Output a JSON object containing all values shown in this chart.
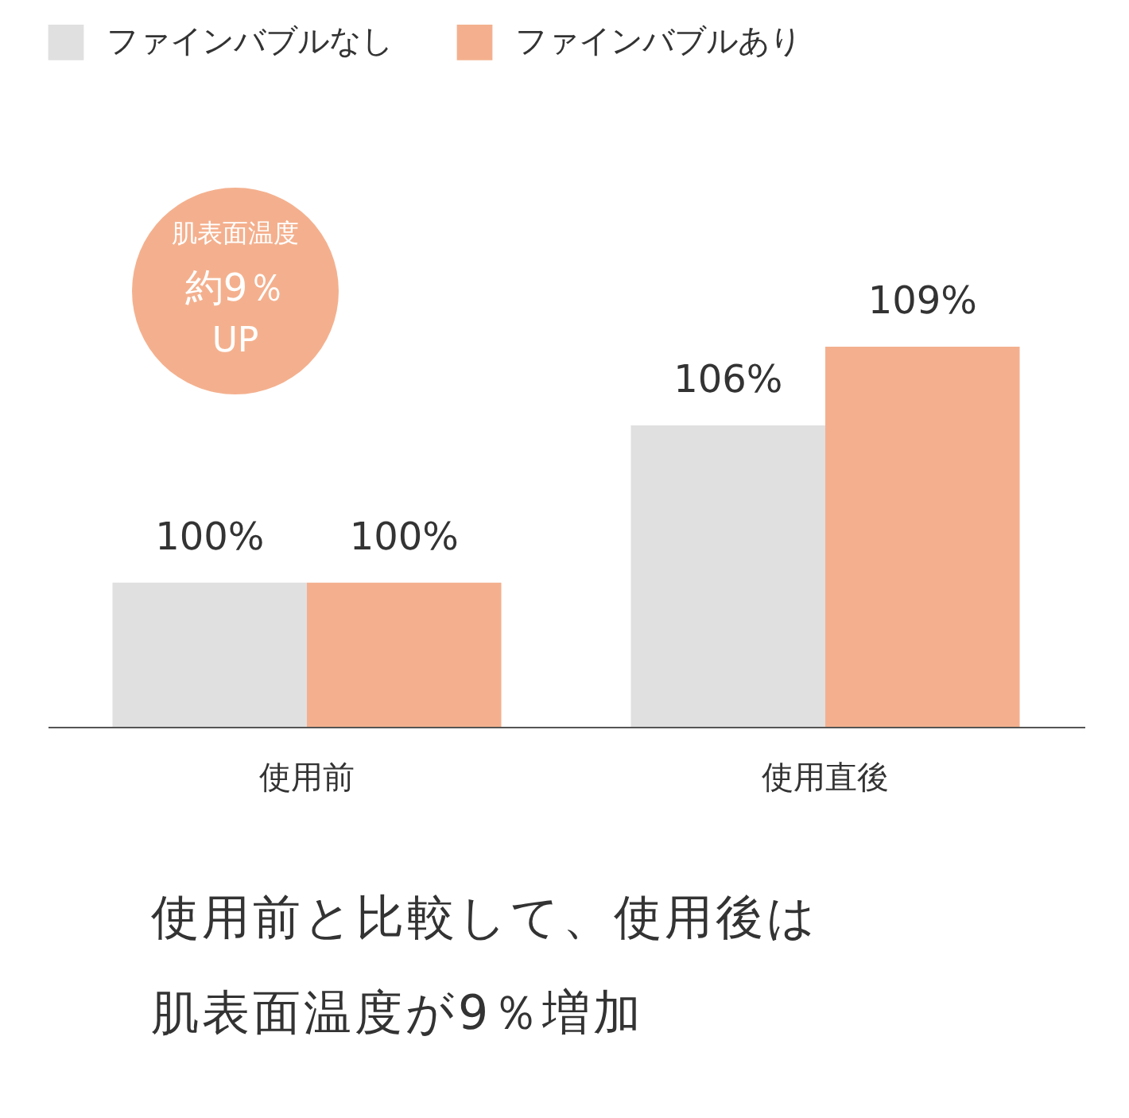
{
  "chart_data": {
    "type": "bar",
    "categories": [
      "使用前",
      "使用直後"
    ],
    "series": [
      {
        "name": "ファインバブルなし",
        "color": "#e0e0e1",
        "values": [
          100,
          106
        ],
        "value_labels": [
          "100%",
          "106%"
        ]
      },
      {
        "name": "ファインバブルあり",
        "color": "#f4b08e",
        "values": [
          100,
          109
        ],
        "value_labels": [
          "100%",
          "109%"
        ]
      }
    ],
    "ylim": [
      94.5,
      109
    ],
    "tick_labels": "x",
    "legend": "top left",
    "annotations": [
      "肌表面温度",
      "約9％",
      "UP",
      "使用前と比較して、使用後は",
      "肌表面温度が9％増加"
    ]
  }
}
